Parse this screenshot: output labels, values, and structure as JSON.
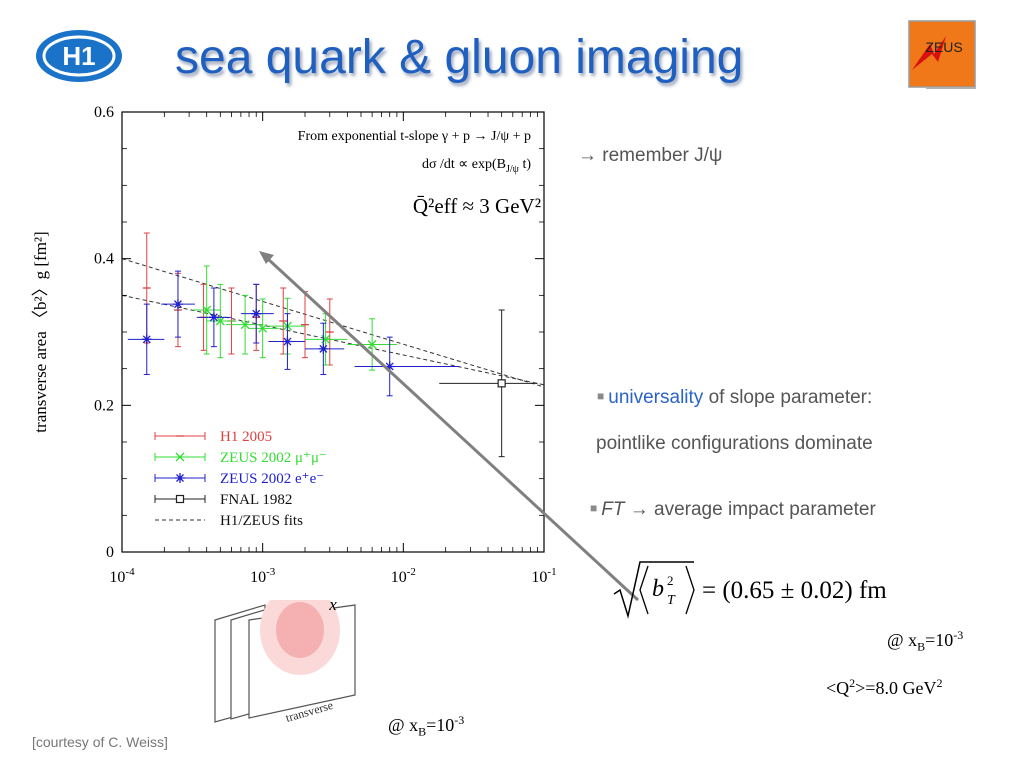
{
  "slide": {
    "title": "sea quark & gluon imaging",
    "logos": {
      "left": "H1",
      "right": "ZEUS"
    },
    "note_remember": "→ remember J/ψ",
    "universality_word": "universality",
    "universality_rest": " of slope parameter:",
    "pointlike": "pointlike configurations dominate",
    "ft_word": "FT",
    "ft_rest": " → average impact parameter",
    "formula_result": "= (0.65 ± 0.02) fm",
    "at_xb_prefix": "@ x",
    "xb_sub": "B",
    "xb_eq": "=10",
    "xb_exp": "-3",
    "q2_open": "<Q",
    "q2_sup": "2",
    "q2_rest": ">=8.0 GeV",
    "q2_unit_sup": "2",
    "transverse_label": "transverse",
    "courtesy": "[courtesy of C. Weiss]"
  },
  "chart_data": {
    "type": "scatter",
    "x_scale": "log",
    "xlim": [
      0.0001,
      0.1
    ],
    "ylim": [
      0,
      0.6
    ],
    "xlabel": "x",
    "ylabel": "transverse  area  〈b²〉g  [fm²]",
    "x_tick_values": [
      0.0001,
      0.001,
      0.01,
      0.1
    ],
    "x_tick_labels": [
      "10",
      "10",
      "10",
      "10"
    ],
    "x_tick_exps": [
      "-4",
      "-3",
      "-2",
      "-1"
    ],
    "y_ticks": [
      0,
      0.2,
      0.4,
      0.6
    ],
    "y_tick_labels": [
      "0",
      "0.2",
      "0.4",
      "0.6"
    ],
    "annotations": [
      "From exponential  t-slope  γ + p → J/ψ + p",
      "dσ /dt  ∝  exp(B",
      "J/ψ",
      " t)",
      "Q̄²eff ≈ 3 GeV²"
    ],
    "legend_position": "bottom-left",
    "series": [
      {
        "name": "H1 2005",
        "color": "#e04040",
        "marker": "tick",
        "points": [
          {
            "x": 0.00015,
            "y": 0.36,
            "yerr": 0.075
          },
          {
            "x": 0.00025,
            "y": 0.33,
            "yerr": 0.05
          },
          {
            "x": 0.00038,
            "y": 0.32,
            "yerr": 0.045
          },
          {
            "x": 0.0006,
            "y": 0.315,
            "yerr": 0.045
          },
          {
            "x": 0.0009,
            "y": 0.32,
            "yerr": 0.045
          },
          {
            "x": 0.0014,
            "y": 0.315,
            "yerr": 0.045
          },
          {
            "x": 0.002,
            "y": 0.31,
            "yerr": 0.045
          },
          {
            "x": 0.003,
            "y": 0.3,
            "yerr": 0.045
          }
        ]
      },
      {
        "name": "ZEUS 2002 μ⁺μ⁻",
        "color": "#33dd33",
        "marker": "x",
        "points": [
          {
            "x": 0.0004,
            "y": 0.33,
            "xlo": 0.00032,
            "xhi": 0.0005,
            "yerr": 0.06
          },
          {
            "x": 0.0005,
            "y": 0.315,
            "xlo": 0.0004,
            "xhi": 0.00065,
            "yerr": 0.05
          },
          {
            "x": 0.00075,
            "y": 0.31,
            "xlo": 0.00055,
            "xhi": 0.001,
            "yerr": 0.04
          },
          {
            "x": 0.001,
            "y": 0.305,
            "xlo": 0.0008,
            "xhi": 0.0013,
            "yerr": 0.04
          },
          {
            "x": 0.0015,
            "y": 0.308,
            "xlo": 0.0011,
            "xhi": 0.002,
            "yerr": 0.038
          },
          {
            "x": 0.0028,
            "y": 0.29,
            "xlo": 0.002,
            "xhi": 0.004,
            "yerr": 0.035
          },
          {
            "x": 0.006,
            "y": 0.283,
            "xlo": 0.004,
            "xhi": 0.009,
            "yerr": 0.035
          }
        ]
      },
      {
        "name": "ZEUS 2002 e⁺e⁻",
        "color": "#2020cc",
        "marker": "star",
        "points": [
          {
            "x": 0.00015,
            "y": 0.29,
            "xlo": 0.00011,
            "xhi": 0.0002,
            "yerr": 0.048
          },
          {
            "x": 0.00025,
            "y": 0.338,
            "xlo": 0.00019,
            "xhi": 0.00033,
            "yerr": 0.045
          },
          {
            "x": 0.00045,
            "y": 0.32,
            "xlo": 0.00034,
            "xhi": 0.0006,
            "yerr": 0.04
          },
          {
            "x": 0.0009,
            "y": 0.325,
            "xlo": 0.0007,
            "xhi": 0.0012,
            "yerr": 0.04
          },
          {
            "x": 0.0015,
            "y": 0.287,
            "xlo": 0.0011,
            "xhi": 0.002,
            "yerr": 0.038
          },
          {
            "x": 0.0027,
            "y": 0.277,
            "xlo": 0.002,
            "xhi": 0.0038,
            "yerr": 0.035
          },
          {
            "x": 0.008,
            "y": 0.253,
            "xlo": 0.0045,
            "xhi": 0.025,
            "yerr": 0.04
          }
        ]
      },
      {
        "name": "FNAL 1982",
        "color": "#222222",
        "marker": "square",
        "points": [
          {
            "x": 0.05,
            "y": 0.23,
            "xlo": 0.018,
            "xhi": 0.09,
            "yerr": 0.1
          }
        ]
      }
    ],
    "fits": {
      "name": "H1/ZEUS fits",
      "lines": [
        {
          "x": [
            0.0001,
            0.1
          ],
          "y": [
            0.4,
            0.225
          ]
        },
        {
          "x": [
            0.0001,
            0.1
          ],
          "y": [
            0.35,
            0.228
          ]
        }
      ]
    }
  }
}
